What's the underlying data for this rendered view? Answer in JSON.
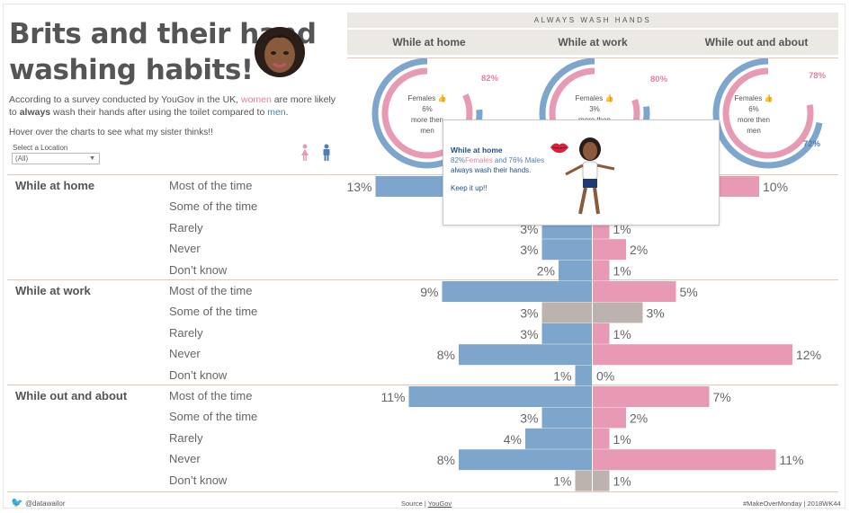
{
  "title_line1": "Brits and their hand",
  "title_line2": "washing habits!",
  "intro": {
    "p1": "According to a survey conducted by YouGov in the UK, ",
    "women": "women",
    "p2": " are more likely to ",
    "always": "always",
    "p3": " wash their hands after using the toilet compared to ",
    "men": "men",
    "p4": "."
  },
  "hover_note": "Hover over the charts to see what my sister thinks!!",
  "location": {
    "label": "Select a Location",
    "value": "(All)"
  },
  "header_band": "ALWAYS WASH HANDS",
  "columns": [
    "While at home",
    "While at work",
    "While out and about"
  ],
  "donuts": [
    {
      "female_pct": "82%",
      "male_pct": "76%",
      "female": 82,
      "male": 76,
      "text1": "Females",
      "text2": "6%",
      "text3": "more then",
      "text4": "men"
    },
    {
      "female_pct": "80%",
      "male_pct": "77%",
      "female": 80,
      "male": 77,
      "text1": "Females",
      "text2": "3%",
      "text3": "more then",
      "text4": "men"
    },
    {
      "female_pct": "78%",
      "male_pct": "72%",
      "female": 78,
      "male": 72,
      "text1": "Females",
      "text2": "6%",
      "text3": "more then",
      "text4": "men"
    }
  ],
  "tooltip": {
    "title": "While at home",
    "l1a": "82%",
    "l1b": "Females",
    "l1c": " and 76% Males",
    "l2": "always wash their hands.",
    "l3": "Keep it up!!"
  },
  "colors": {
    "female": "#e899b4",
    "male": "#7ea6cd",
    "neutral": "#bcb3ae",
    "line": "#e2c8bc"
  },
  "chart_data": {
    "type": "bar",
    "title": "",
    "groups": [
      {
        "name": "While at home",
        "categories": [
          "Most of the time",
          "Some of the time",
          "Rarely",
          "Never",
          "Don’t know"
        ],
        "male": [
          13,
          null,
          3,
          3,
          2
        ],
        "female": [
          10,
          null,
          1,
          2,
          1
        ],
        "neutral_rows": []
      },
      {
        "name": "While at work",
        "categories": [
          "Most of the time",
          "Some of the time",
          "Rarely",
          "Never",
          "Don’t know"
        ],
        "male": [
          9,
          3,
          3,
          8,
          1
        ],
        "female": [
          5,
          3,
          1,
          12,
          0
        ],
        "neutral_rows": [
          1
        ]
      },
      {
        "name": "While out and about",
        "categories": [
          "Most of the time",
          "Some of the time",
          "Rarely",
          "Never",
          "Don’t know"
        ],
        "male": [
          11,
          3,
          4,
          8,
          1
        ],
        "female": [
          7,
          2,
          1,
          11,
          1
        ],
        "neutral_rows": [
          4
        ]
      }
    ]
  },
  "footer": {
    "twitter": "@datawailor",
    "source_label": "Source | ",
    "source_link": "YouGov",
    "tag": "#MakeOverMonday | 2018WK44"
  }
}
